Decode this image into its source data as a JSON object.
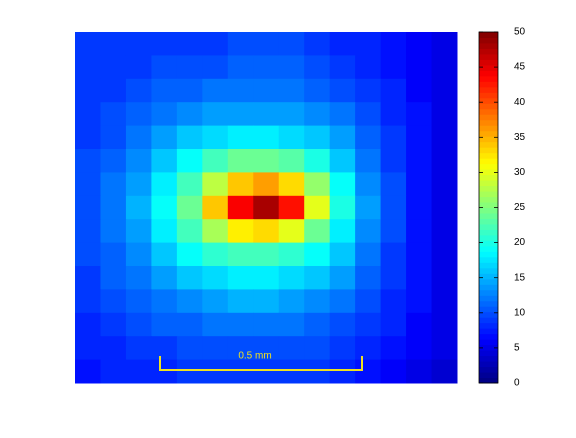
{
  "chart_data": {
    "type": "heatmap",
    "values": [
      [
        9,
        9,
        9,
        9,
        9,
        9,
        10,
        10,
        10,
        9,
        8,
        8,
        7,
        6,
        5
      ],
      [
        9,
        9,
        9,
        10,
        10,
        10,
        11,
        11,
        11,
        10,
        9,
        8,
        7,
        6,
        5
      ],
      [
        9,
        9,
        10,
        11,
        11,
        12,
        12,
        12,
        12,
        11,
        10,
        9,
        8,
        6,
        5
      ],
      [
        9,
        10,
        11,
        12,
        13,
        14,
        14,
        14,
        14,
        13,
        12,
        10,
        8,
        7,
        5
      ],
      [
        9,
        10,
        12,
        14,
        16,
        17,
        18,
        18,
        17,
        16,
        14,
        11,
        9,
        7,
        5
      ],
      [
        10,
        11,
        13,
        16,
        19,
        22,
        24,
        24,
        23,
        20,
        16,
        12,
        9,
        7,
        5
      ],
      [
        10,
        12,
        14,
        18,
        22,
        28,
        34,
        36,
        33,
        26,
        19,
        13,
        10,
        7,
        5
      ],
      [
        10,
        12,
        15,
        19,
        24,
        34,
        44,
        48,
        43,
        30,
        20,
        14,
        10,
        7,
        5
      ],
      [
        10,
        12,
        14,
        18,
        22,
        27,
        32,
        33,
        30,
        24,
        18,
        13,
        10,
        7,
        5
      ],
      [
        10,
        11,
        13,
        16,
        19,
        21,
        22,
        22,
        21,
        19,
        16,
        12,
        9,
        7,
        5
      ],
      [
        9,
        11,
        12,
        14,
        16,
        17,
        18,
        18,
        17,
        16,
        14,
        11,
        9,
        7,
        5
      ],
      [
        9,
        10,
        11,
        12,
        13,
        14,
        15,
        15,
        14,
        13,
        12,
        10,
        8,
        7,
        5
      ],
      [
        8,
        9,
        10,
        11,
        11,
        12,
        12,
        12,
        12,
        11,
        10,
        9,
        8,
        6,
        5
      ],
      [
        8,
        8,
        9,
        9,
        10,
        10,
        10,
        10,
        10,
        10,
        9,
        8,
        7,
        6,
        5
      ],
      [
        7,
        8,
        8,
        8,
        9,
        9,
        9,
        9,
        9,
        9,
        8,
        7,
        6,
        5,
        4
      ]
    ],
    "colormap": "jet",
    "clim": [
      0,
      50
    ],
    "cticks": [
      0,
      5,
      10,
      15,
      20,
      25,
      30,
      35,
      40,
      45,
      50
    ],
    "annotation": "0.5 mm",
    "annotation_color": "#f0e020"
  }
}
